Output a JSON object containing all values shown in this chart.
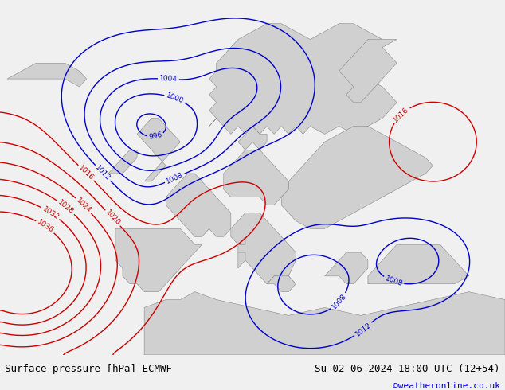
{
  "title_left": "Surface pressure [hPa] ECMWF",
  "title_right": "Su 02-06-2024 18:00 UTC (12+54)",
  "watermark": "©weatheronline.co.uk",
  "sea_color": "#c8e6a0",
  "land_color": "#d8d8d8",
  "bottom_bar_color": "#f0f0f0",
  "isobar_high_color": "#cc0000",
  "isobar_low_color": "#0000cc",
  "isobar_black_color": "#000000",
  "fig_width": 6.34,
  "fig_height": 4.9,
  "dpi": 100
}
